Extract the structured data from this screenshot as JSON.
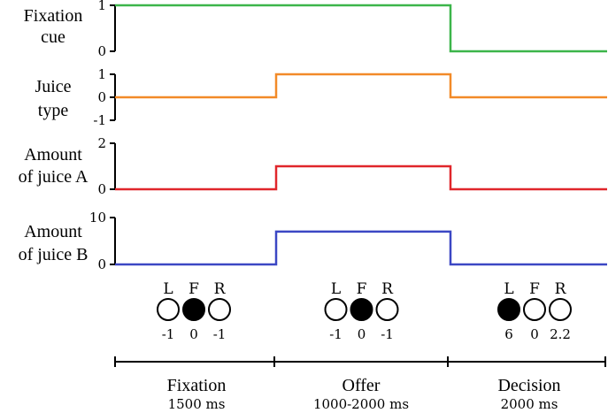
{
  "signals": [
    {
      "label_lines": [
        "Fixation",
        "cue"
      ],
      "color": "#3cb54a",
      "ticks": [
        "1",
        "0"
      ],
      "tick_values": [
        1,
        0
      ],
      "y_range": [
        0,
        1
      ],
      "values": [
        1,
        1,
        0
      ]
    },
    {
      "label_lines": [
        "Juice",
        "type"
      ],
      "color": "#f28a28",
      "ticks": [
        "1",
        "0",
        "-1"
      ],
      "tick_values": [
        1,
        0,
        -1
      ],
      "y_range": [
        -1,
        1
      ],
      "values": [
        0,
        1,
        0
      ]
    },
    {
      "label_lines": [
        "Amount",
        "of juice A"
      ],
      "color": "#e0262b",
      "ticks": [
        "2",
        "0"
      ],
      "tick_values": [
        2,
        0
      ],
      "y_range": [
        0,
        2
      ],
      "values": [
        0,
        1,
        0
      ]
    },
    {
      "label_lines": [
        "Amount",
        "of juice B"
      ],
      "color": "#3b47c4",
      "ticks": [
        "10",
        "0"
      ],
      "tick_values": [
        10,
        0
      ],
      "y_range": [
        0,
        10
      ],
      "values": [
        0,
        7,
        0
      ]
    }
  ],
  "phases": [
    {
      "name": "Fixation",
      "duration": "1500 ms",
      "ports": [
        {
          "label": "L",
          "value": "-1",
          "filled": false
        },
        {
          "label": "F",
          "value": "0",
          "filled": true
        },
        {
          "label": "R",
          "value": "-1",
          "filled": false
        }
      ]
    },
    {
      "name": "Offer",
      "duration": "1000-2000 ms",
      "ports": [
        {
          "label": "L",
          "value": "-1",
          "filled": false
        },
        {
          "label": "F",
          "value": "0",
          "filled": true
        },
        {
          "label": "R",
          "value": "-1",
          "filled": false
        }
      ]
    },
    {
      "name": "Decision",
      "duration": "2000 ms",
      "ports": [
        {
          "label": "L",
          "value": "6",
          "filled": true
        },
        {
          "label": "F",
          "value": "0",
          "filled": false
        },
        {
          "label": "R",
          "value": "2.2",
          "filled": false
        }
      ]
    }
  ]
}
